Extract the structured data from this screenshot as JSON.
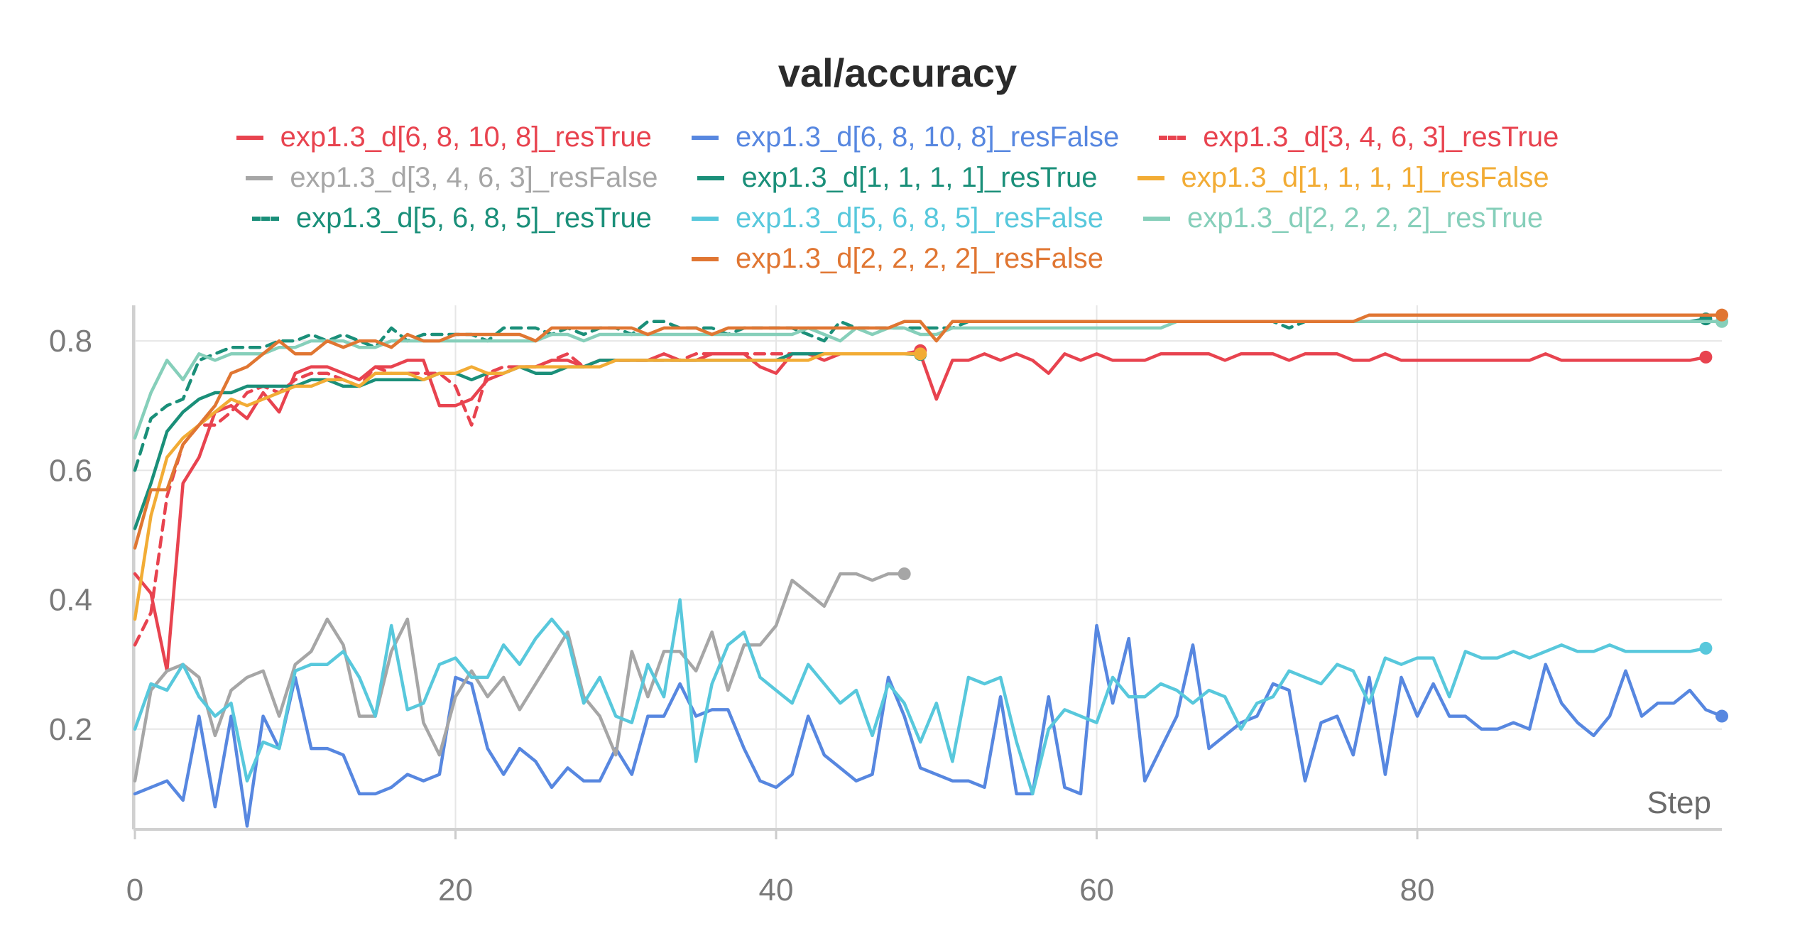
{
  "chart_data": {
    "type": "line",
    "title": "val/accuracy",
    "xlabel": "Step",
    "ylabel": "",
    "xlim": [
      0,
      99
    ],
    "ylim": [
      0.045,
      0.855
    ],
    "xticks": [
      "0",
      "20",
      "40",
      "60",
      "80"
    ],
    "xtick_values": [
      0,
      20,
      40,
      60,
      80
    ],
    "yticks": [
      "0.2",
      "0.4",
      "0.6",
      "0.8"
    ],
    "ytick_values": [
      0.2,
      0.4,
      0.6,
      0.8
    ],
    "grid": true,
    "legend_position": "top",
    "series": [
      {
        "name": "exp1.3_d[6, 8, 10, 8]_resTrue",
        "color": "#e8434f",
        "dash": false,
        "x_start": 0,
        "values": [
          0.44,
          0.41,
          0.29,
          0.58,
          0.62,
          0.69,
          0.7,
          0.68,
          0.72,
          0.69,
          0.75,
          0.76,
          0.76,
          0.75,
          0.74,
          0.76,
          0.76,
          0.77,
          0.77,
          0.7,
          0.7,
          0.71,
          0.74,
          0.75,
          0.76,
          0.76,
          0.77,
          0.77,
          0.76,
          0.77,
          0.77,
          0.77,
          0.77,
          0.78,
          0.77,
          0.77,
          0.78,
          0.78,
          0.78,
          0.76,
          0.75,
          0.78,
          0.78,
          0.77,
          0.78,
          0.78,
          0.78,
          0.78,
          0.78,
          0.78,
          0.71,
          0.77,
          0.77,
          0.78,
          0.77,
          0.78,
          0.77,
          0.75,
          0.78,
          0.77,
          0.78,
          0.77,
          0.77,
          0.77,
          0.78,
          0.78,
          0.78,
          0.78,
          0.77,
          0.78,
          0.78,
          0.78,
          0.77,
          0.78,
          0.78,
          0.78,
          0.77,
          0.77,
          0.78,
          0.77,
          0.77,
          0.77,
          0.77,
          0.77,
          0.77,
          0.77,
          0.77,
          0.77,
          0.78,
          0.77,
          0.77,
          0.77,
          0.77,
          0.77,
          0.77,
          0.77,
          0.77,
          0.77,
          0.775
        ]
      },
      {
        "name": "exp1.3_d[6, 8, 10, 8]_resFalse",
        "color": "#5787e0",
        "dash": false,
        "x_start": 0,
        "values": [
          0.1,
          0.11,
          0.12,
          0.09,
          0.22,
          0.08,
          0.22,
          0.05,
          0.22,
          0.17,
          0.28,
          0.17,
          0.17,
          0.16,
          0.1,
          0.1,
          0.11,
          0.13,
          0.12,
          0.13,
          0.28,
          0.27,
          0.17,
          0.13,
          0.17,
          0.15,
          0.11,
          0.14,
          0.12,
          0.12,
          0.17,
          0.13,
          0.22,
          0.22,
          0.27,
          0.22,
          0.23,
          0.23,
          0.17,
          0.12,
          0.11,
          0.13,
          0.22,
          0.16,
          0.14,
          0.12,
          0.13,
          0.28,
          0.22,
          0.14,
          0.13,
          0.12,
          0.12,
          0.11,
          0.25,
          0.1,
          0.1,
          0.25,
          0.11,
          0.1,
          0.36,
          0.24,
          0.34,
          0.12,
          0.17,
          0.22,
          0.33,
          0.17,
          0.19,
          0.21,
          0.22,
          0.27,
          0.26,
          0.12,
          0.21,
          0.22,
          0.16,
          0.28,
          0.13,
          0.28,
          0.22,
          0.27,
          0.22,
          0.22,
          0.2,
          0.2,
          0.21,
          0.2,
          0.3,
          0.24,
          0.21,
          0.19,
          0.22,
          0.29,
          0.22,
          0.24,
          0.24,
          0.26,
          0.23,
          0.22
        ]
      },
      {
        "name": "exp1.3_d[3, 4, 6, 3]_resTrue",
        "color": "#e8434f",
        "dash": true,
        "x_start": 0,
        "values": [
          0.33,
          0.38,
          0.56,
          0.64,
          0.67,
          0.67,
          0.69,
          0.72,
          0.73,
          0.72,
          0.74,
          0.75,
          0.75,
          0.74,
          0.73,
          0.76,
          0.75,
          0.75,
          0.75,
          0.75,
          0.73,
          0.67,
          0.75,
          0.76,
          0.76,
          0.76,
          0.77,
          0.78,
          0.76,
          0.77,
          0.77,
          0.77,
          0.77,
          0.77,
          0.77,
          0.78,
          0.78,
          0.78,
          0.78,
          0.78,
          0.78,
          0.78,
          0.78,
          0.78,
          0.78,
          0.78,
          0.78,
          0.78,
          0.78,
          0.785
        ]
      },
      {
        "name": "exp1.3_d[3, 4, 6, 3]_resFalse",
        "color": "#a6a6a6",
        "dash": false,
        "x_start": 0,
        "values": [
          0.12,
          0.26,
          0.29,
          0.3,
          0.28,
          0.19,
          0.26,
          0.28,
          0.29,
          0.22,
          0.3,
          0.32,
          0.37,
          0.33,
          0.22,
          0.22,
          0.32,
          0.37,
          0.21,
          0.16,
          0.25,
          0.29,
          0.25,
          0.28,
          0.23,
          0.27,
          0.31,
          0.35,
          0.25,
          0.22,
          0.16,
          0.32,
          0.25,
          0.32,
          0.32,
          0.29,
          0.35,
          0.26,
          0.33,
          0.33,
          0.36,
          0.43,
          0.41,
          0.39,
          0.44,
          0.44,
          0.43,
          0.44,
          0.44
        ]
      },
      {
        "name": "exp1.3_d[1, 1, 1, 1]_resTrue",
        "color": "#1a8f79",
        "dash": false,
        "x_start": 0,
        "values": [
          0.51,
          0.58,
          0.66,
          0.69,
          0.71,
          0.72,
          0.72,
          0.73,
          0.73,
          0.73,
          0.73,
          0.74,
          0.74,
          0.73,
          0.73,
          0.74,
          0.74,
          0.74,
          0.74,
          0.75,
          0.75,
          0.74,
          0.75,
          0.75,
          0.76,
          0.75,
          0.75,
          0.76,
          0.76,
          0.77,
          0.77,
          0.77,
          0.77,
          0.77,
          0.77,
          0.77,
          0.77,
          0.77,
          0.77,
          0.77,
          0.77,
          0.78,
          0.78,
          0.78,
          0.78,
          0.78,
          0.78,
          0.78,
          0.78,
          0.779
        ]
      },
      {
        "name": "exp1.3_d[1, 1, 1, 1]_resFalse",
        "color": "#f2ac35",
        "dash": false,
        "x_start": 0,
        "values": [
          0.37,
          0.53,
          0.62,
          0.65,
          0.67,
          0.69,
          0.71,
          0.7,
          0.71,
          0.72,
          0.73,
          0.73,
          0.74,
          0.74,
          0.73,
          0.75,
          0.75,
          0.75,
          0.74,
          0.75,
          0.75,
          0.76,
          0.75,
          0.75,
          0.76,
          0.76,
          0.76,
          0.76,
          0.76,
          0.76,
          0.77,
          0.77,
          0.77,
          0.77,
          0.77,
          0.77,
          0.77,
          0.77,
          0.77,
          0.77,
          0.77,
          0.77,
          0.77,
          0.78,
          0.78,
          0.78,
          0.78,
          0.78,
          0.78,
          0.78
        ]
      },
      {
        "name": "exp1.3_d[5, 6, 8, 5]_resTrue",
        "color": "#1a8f79",
        "dash": true,
        "x_start": 0,
        "values": [
          0.6,
          0.68,
          0.7,
          0.71,
          0.77,
          0.78,
          0.79,
          0.79,
          0.79,
          0.8,
          0.8,
          0.81,
          0.8,
          0.81,
          0.8,
          0.79,
          0.82,
          0.8,
          0.81,
          0.81,
          0.81,
          0.81,
          0.8,
          0.82,
          0.82,
          0.82,
          0.81,
          0.82,
          0.81,
          0.82,
          0.82,
          0.81,
          0.83,
          0.83,
          0.82,
          0.82,
          0.82,
          0.81,
          0.82,
          0.82,
          0.82,
          0.82,
          0.81,
          0.8,
          0.83,
          0.82,
          0.82,
          0.82,
          0.82,
          0.82,
          0.82,
          0.82,
          0.83,
          0.83,
          0.83,
          0.83,
          0.83,
          0.83,
          0.83,
          0.83,
          0.83,
          0.83,
          0.83,
          0.83,
          0.83,
          0.83,
          0.83,
          0.83,
          0.83,
          0.83,
          0.83,
          0.83,
          0.82,
          0.83,
          0.83,
          0.83,
          0.83,
          0.83,
          0.83,
          0.83,
          0.83,
          0.83,
          0.83,
          0.83,
          0.83,
          0.83,
          0.83,
          0.83,
          0.83,
          0.83,
          0.83,
          0.83,
          0.83,
          0.83,
          0.83,
          0.83,
          0.83,
          0.83,
          0.834
        ]
      },
      {
        "name": "exp1.3_d[5, 6, 8, 5]_resFalse",
        "color": "#58c8dc",
        "dash": false,
        "x_start": 0,
        "values": [
          0.2,
          0.27,
          0.26,
          0.3,
          0.25,
          0.22,
          0.24,
          0.12,
          0.18,
          0.17,
          0.29,
          0.3,
          0.3,
          0.32,
          0.28,
          0.22,
          0.36,
          0.23,
          0.24,
          0.3,
          0.31,
          0.28,
          0.28,
          0.33,
          0.3,
          0.34,
          0.37,
          0.34,
          0.24,
          0.28,
          0.22,
          0.21,
          0.3,
          0.25,
          0.4,
          0.15,
          0.27,
          0.33,
          0.35,
          0.28,
          0.26,
          0.24,
          0.3,
          0.27,
          0.24,
          0.26,
          0.19,
          0.27,
          0.24,
          0.18,
          0.24,
          0.15,
          0.28,
          0.27,
          0.28,
          0.18,
          0.1,
          0.2,
          0.23,
          0.22,
          0.21,
          0.28,
          0.25,
          0.25,
          0.27,
          0.26,
          0.24,
          0.26,
          0.25,
          0.2,
          0.24,
          0.25,
          0.29,
          0.28,
          0.27,
          0.3,
          0.29,
          0.24,
          0.31,
          0.3,
          0.31,
          0.31,
          0.25,
          0.32,
          0.31,
          0.31,
          0.32,
          0.31,
          0.32,
          0.33,
          0.32,
          0.32,
          0.33,
          0.32,
          0.32,
          0.32,
          0.32,
          0.32,
          0.325
        ]
      },
      {
        "name": "exp1.3_d[2, 2, 2, 2]_resTrue",
        "color": "#86cfba",
        "dash": false,
        "x_start": 0,
        "values": [
          0.65,
          0.72,
          0.77,
          0.74,
          0.78,
          0.77,
          0.78,
          0.78,
          0.78,
          0.79,
          0.79,
          0.8,
          0.8,
          0.8,
          0.79,
          0.79,
          0.8,
          0.8,
          0.8,
          0.8,
          0.8,
          0.8,
          0.8,
          0.8,
          0.8,
          0.8,
          0.81,
          0.81,
          0.8,
          0.81,
          0.81,
          0.81,
          0.81,
          0.81,
          0.81,
          0.81,
          0.81,
          0.81,
          0.81,
          0.81,
          0.81,
          0.81,
          0.82,
          0.81,
          0.8,
          0.82,
          0.81,
          0.82,
          0.82,
          0.81,
          0.81,
          0.82,
          0.82,
          0.82,
          0.82,
          0.82,
          0.82,
          0.82,
          0.82,
          0.82,
          0.82,
          0.82,
          0.82,
          0.82,
          0.82,
          0.83,
          0.83,
          0.83,
          0.83,
          0.83,
          0.83,
          0.83,
          0.83,
          0.83,
          0.83,
          0.83,
          0.83,
          0.83,
          0.83,
          0.83,
          0.83,
          0.83,
          0.83,
          0.83,
          0.83,
          0.83,
          0.83,
          0.83,
          0.83,
          0.83,
          0.83,
          0.83,
          0.83,
          0.83,
          0.83,
          0.83,
          0.83,
          0.83,
          0.83,
          0.83
        ]
      },
      {
        "name": "exp1.3_d[2, 2, 2, 2]_resFalse",
        "color": "#e07632",
        "dash": false,
        "x_start": 0,
        "values": [
          0.48,
          0.57,
          0.57,
          0.64,
          0.67,
          0.7,
          0.75,
          0.76,
          0.78,
          0.8,
          0.78,
          0.78,
          0.8,
          0.79,
          0.8,
          0.8,
          0.79,
          0.81,
          0.8,
          0.8,
          0.81,
          0.81,
          0.81,
          0.81,
          0.81,
          0.8,
          0.82,
          0.82,
          0.82,
          0.82,
          0.82,
          0.82,
          0.81,
          0.82,
          0.82,
          0.82,
          0.81,
          0.82,
          0.82,
          0.82,
          0.82,
          0.82,
          0.82,
          0.82,
          0.82,
          0.82,
          0.82,
          0.82,
          0.83,
          0.83,
          0.8,
          0.83,
          0.83,
          0.83,
          0.83,
          0.83,
          0.83,
          0.83,
          0.83,
          0.83,
          0.83,
          0.83,
          0.83,
          0.83,
          0.83,
          0.83,
          0.83,
          0.83,
          0.83,
          0.83,
          0.83,
          0.83,
          0.83,
          0.83,
          0.83,
          0.83,
          0.83,
          0.84,
          0.84,
          0.84,
          0.84,
          0.84,
          0.84,
          0.84,
          0.84,
          0.84,
          0.84,
          0.84,
          0.84,
          0.84,
          0.84,
          0.84,
          0.84,
          0.84,
          0.84,
          0.84,
          0.84,
          0.84,
          0.84,
          0.84
        ]
      }
    ]
  }
}
